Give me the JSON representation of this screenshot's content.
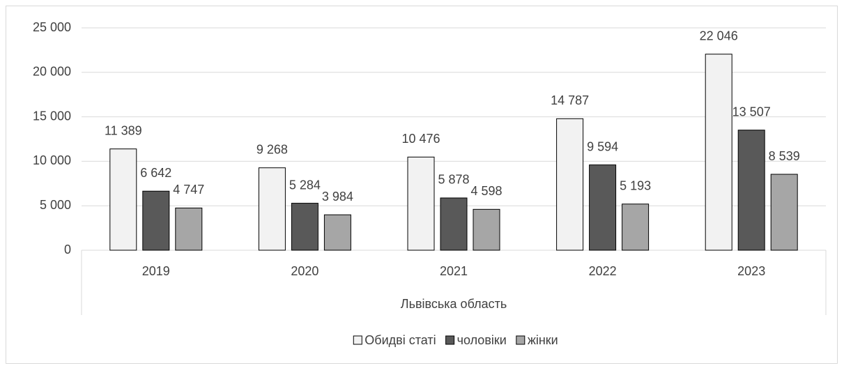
{
  "chart_data": {
    "type": "bar",
    "categories": [
      "2019",
      "2020",
      "2021",
      "2022",
      "2023"
    ],
    "group_label": "Львівська область",
    "series": [
      {
        "name": "Обидві статі",
        "color": "#f2f2f2",
        "values": [
          11389,
          9268,
          10476,
          14787,
          22046
        ],
        "value_labels": [
          "11 389",
          "9 268",
          "10 476",
          "14 787",
          "22 046"
        ]
      },
      {
        "name": "чоловіки",
        "color": "#595959",
        "values": [
          6642,
          5284,
          5878,
          9594,
          13507
        ],
        "value_labels": [
          "6 642",
          "5 284",
          "5 878",
          "9 594",
          "13 507"
        ]
      },
      {
        "name": "жінки",
        "color": "#a6a6a6",
        "values": [
          4747,
          3984,
          4598,
          5193,
          8539
        ],
        "value_labels": [
          "4 747",
          "3 984",
          "4 598",
          "5 193",
          "8 539"
        ]
      }
    ],
    "ylim": [
      0,
      25000
    ],
    "yticks": [
      0,
      {
        "value": 5000,
        "label": "5 000"
      },
      {
        "value": 10000,
        "label": "10 000"
      },
      {
        "value": 15000,
        "label": "15 000"
      },
      {
        "value": 20000,
        "label": "20 000"
      },
      {
        "value": 25000,
        "label": "25 000"
      }
    ],
    "grid": true,
    "legend": "bottom"
  }
}
